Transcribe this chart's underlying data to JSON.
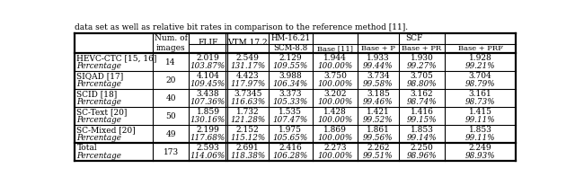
{
  "title_text": "data set as well as relative bit rates in comparison to the reference method [11].",
  "header_scf": "SCF",
  "col_num": "Num. of\nimages",
  "col_flif": "FLIF",
  "col_vtm": "VTM 17.2",
  "col_scm": "HM-16.21\nSCM-8.8",
  "col_base": "Base [11]",
  "col_basep": "Base + P",
  "col_basepr": "Base + PR",
  "col_baseprf": "Base + PRF",
  "rows": [
    {
      "name": "HEVC-CTC [15, 16]",
      "num": "14",
      "flif": "2.019",
      "flif_pct": "103.87%",
      "vtm": "2.549",
      "vtm_pct": "131.17%",
      "scm": "2.129",
      "scm_pct": "109.55%",
      "base": "1.944",
      "base_pct": "100.00%",
      "basep": "1.933",
      "basep_pct": "99.44%",
      "basepr": "1.930",
      "basepr_pct": "99.27%",
      "baseprf": "1.928",
      "baseprf_pct": "99.21%"
    },
    {
      "name": "SIQAD [17]",
      "num": "20",
      "flif": "4.104",
      "flif_pct": "109.45%",
      "vtm": "4.423",
      "vtm_pct": "117.97%",
      "scm": "3.988",
      "scm_pct": "106.34%",
      "base": "3.750",
      "base_pct": "100.00%",
      "basep": "3.734",
      "basep_pct": "99.58%",
      "basepr": "3.705",
      "basepr_pct": "98.80%",
      "baseprf": "3.704",
      "baseprf_pct": "98.79%"
    },
    {
      "name": "SCID [18]",
      "num": "40",
      "flif": "3.438",
      "flif_pct": "107.36%",
      "vtm": "3.7345",
      "vtm_pct": "116.63%",
      "scm": "3.373",
      "scm_pct": "105.33%",
      "base": "3.202",
      "base_pct": "100.00%",
      "basep": "3.185",
      "basep_pct": "99.46%",
      "basepr": "3.162",
      "basepr_pct": "98.74%",
      "baseprf": "3.161",
      "baseprf_pct": "98.73%"
    },
    {
      "name": "SC-Text [20]",
      "num": "50",
      "flif": "1.859",
      "flif_pct": "130.16%",
      "vtm": "1.732",
      "vtm_pct": "121.28%",
      "scm": "1.535",
      "scm_pct": "107.47%",
      "base": "1.428",
      "base_pct": "100.00%",
      "basep": "1.421",
      "basep_pct": "99.52%",
      "basepr": "1.416",
      "basepr_pct": "99.15%",
      "baseprf": "1.415",
      "baseprf_pct": "99.11%"
    },
    {
      "name": "SC-Mixed [20]",
      "num": "49",
      "flif": "2.199",
      "flif_pct": "117.68%",
      "vtm": "2.152",
      "vtm_pct": "115.12%",
      "scm": "1.975",
      "scm_pct": "105.65%",
      "base": "1.869",
      "base_pct": "100.00%",
      "basep": "1.861",
      "basep_pct": "99.56%",
      "basepr": "1.853",
      "basepr_pct": "99.14%",
      "baseprf": "1.853",
      "baseprf_pct": "99.11%"
    }
  ],
  "total": {
    "name": "Total",
    "num": "173",
    "flif": "2.593",
    "flif_pct": "114.06%",
    "vtm": "2.691",
    "vtm_pct": "118.38%",
    "scm": "2.416",
    "scm_pct": "106.28%",
    "base": "2.273",
    "base_pct": "100.00%",
    "basep": "2.262",
    "basep_pct": "99.51%",
    "basepr": "2.250",
    "basepr_pct": "98.96%",
    "baseprf": "2.249",
    "baseprf_pct": "98.93%"
  },
  "pct_label": "Percentage",
  "bg_color": "#ffffff",
  "line_color": "#000000"
}
